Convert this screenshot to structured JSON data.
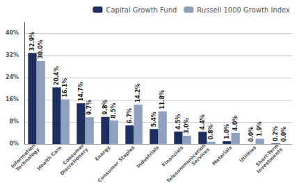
{
  "chart_data": {
    "type": "bar",
    "categories": [
      "Information\nTechnology",
      "Health Care",
      "Consumer\nDiscretionary",
      "Energy",
      "Consumer Staples",
      "Industrials",
      "Financials",
      "Telecommunication\nServices",
      "Materials",
      "Utilities",
      "Short-Term\nInvestments"
    ],
    "series": [
      {
        "name": "Capital Growth Fund",
        "color": "#1c2f5e",
        "values": [
          32.9,
          20.4,
          14.7,
          9.8,
          6.7,
          5.4,
          4.5,
          4.4,
          1.0,
          0.0,
          0.2
        ],
        "value_labels": [
          "32.9%",
          "20.4%",
          "14.7%",
          "9.8%",
          "6.7%",
          "5.4%",
          "4.5%",
          "4.4%",
          "1.0%",
          "0.0%",
          "0.2%"
        ]
      },
      {
        "name": "Russell 1000 Growth Index",
        "color": "#8fa0bf",
        "values": [
          30.0,
          16.1,
          9.7,
          8.5,
          14.2,
          11.8,
          3.0,
          0.8,
          4.0,
          1.9,
          0.0
        ],
        "value_labels": [
          "30.0%",
          "16.1%",
          "9.7%",
          "8.5%",
          "14.2%",
          "11.8%",
          "3.0%",
          "0.8%",
          "4.0%",
          "1.9%",
          "0.0%"
        ]
      }
    ],
    "ylim": [
      0,
      44
    ],
    "yticks": [
      {
        "value": 0,
        "label": "0%"
      },
      {
        "value": 8,
        "label": "8%"
      },
      {
        "value": 16,
        "label": "16%"
      },
      {
        "value": 24,
        "label": "24%"
      },
      {
        "value": 32,
        "label": "32%"
      },
      {
        "value": 40,
        "label": "40%"
      }
    ],
    "grid": true,
    "legend": "upper right",
    "data_labels": true
  }
}
